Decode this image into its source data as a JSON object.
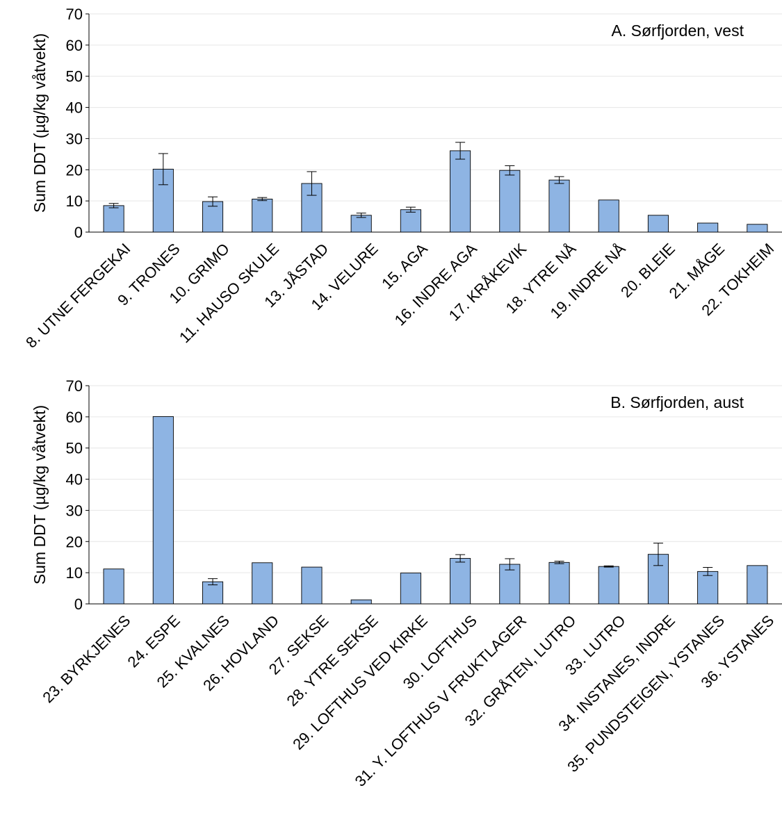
{
  "chart_data": [
    {
      "type": "bar",
      "title": "A. Sørfjorden, vest",
      "ylabel": "Sum DDT (µg/kg våtvekt)",
      "xlabel": "",
      "ylim": [
        0,
        70
      ],
      "yticks": [
        0,
        10,
        20,
        30,
        40,
        50,
        60,
        70
      ],
      "grid": true,
      "error_bars": true,
      "categories": [
        "8. UTNE FERGEKAI",
        "9. TRONES",
        "10. GRIMO",
        "11. HAUSO SKULE",
        "13. JÅSTAD",
        "14. VELURE",
        "15. AGA",
        "16. INDRE AGA",
        "17. KRÅKEVIK",
        "18. YTRE NÅ",
        "19. INDRE NÅ",
        "20. BLEIE",
        "21. MÅGE",
        "22. TOKHEIM"
      ],
      "values": [
        8.5,
        20.2,
        9.8,
        10.6,
        15.6,
        5.4,
        7.2,
        26.1,
        19.8,
        16.7,
        10.3,
        5.4,
        2.9,
        2.5
      ],
      "errors": [
        0.7,
        5.0,
        1.5,
        0.5,
        3.8,
        0.7,
        0.8,
        2.7,
        1.5,
        1.1,
        null,
        null,
        null,
        null
      ]
    },
    {
      "type": "bar",
      "title": "B. Sørfjorden, aust",
      "ylabel": "Sum DDT (µg/kg våtvekt)",
      "xlabel": "",
      "ylim": [
        0,
        70
      ],
      "yticks": [
        0,
        10,
        20,
        30,
        40,
        50,
        60,
        70
      ],
      "grid": true,
      "error_bars": true,
      "categories": [
        "23. BYRKJENES",
        "24. ESPE",
        "25. KVALNES",
        "26. HOVLAND",
        "27. SEKSE",
        "28. YTRE SEKSE",
        "29. LOFTHUS VED KIRKE",
        "30. LOFTHUS",
        "31. Y. LOFTHUS V FRUKTLAGER",
        "32. GRÅTEN, LUTRO",
        "33. LUTRO",
        "34. INSTANES, INDRE",
        "35. PUNDSTEIGEN, YSTANES",
        "36. YSTANES"
      ],
      "values": [
        11.2,
        60.1,
        7.1,
        13.2,
        11.8,
        1.3,
        9.9,
        14.6,
        12.7,
        13.3,
        12.0,
        15.9,
        10.4,
        12.3
      ],
      "errors": [
        null,
        null,
        1.0,
        null,
        null,
        null,
        null,
        1.2,
        1.8,
        0.4,
        0.2,
        3.6,
        1.3,
        null
      ]
    }
  ]
}
